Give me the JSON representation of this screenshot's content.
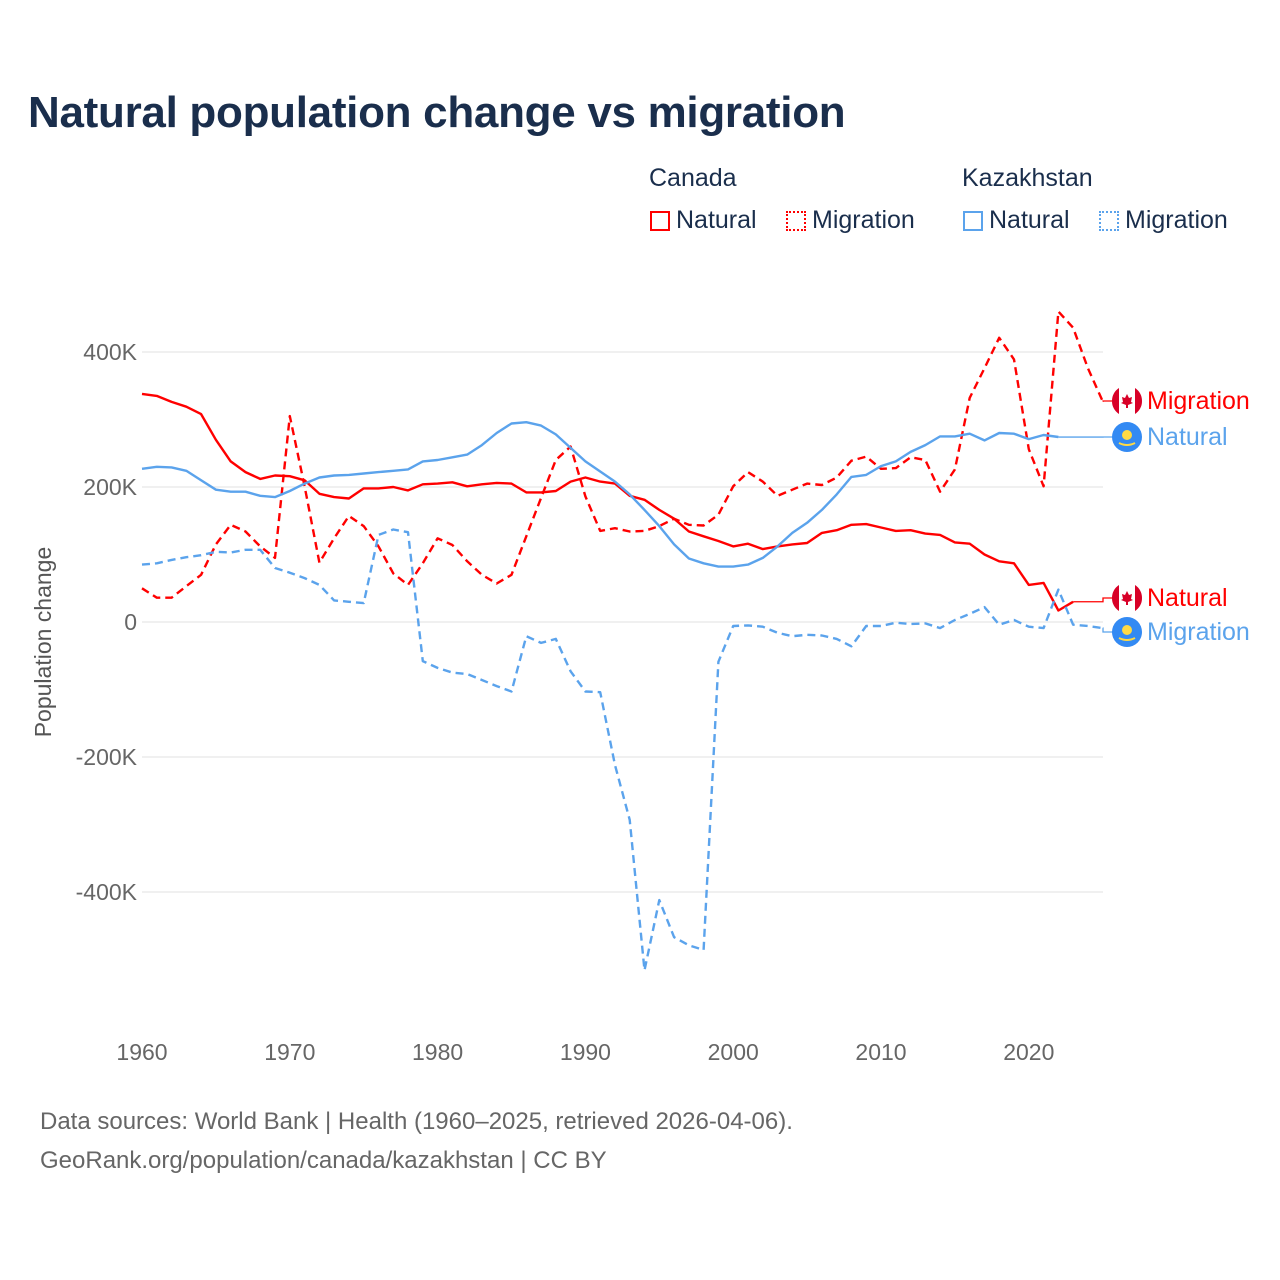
{
  "title": "Natural population change vs migration",
  "legend": {
    "groups": [
      {
        "name": "Canada",
        "items": [
          "Natural",
          "Migration"
        ]
      },
      {
        "name": "Kazakhstan",
        "items": [
          "Natural",
          "Migration"
        ]
      }
    ]
  },
  "footer": {
    "line1": "Data sources: World Bank | Health (1960–2025, retrieved 2026-04-06).",
    "line2": "GeoRank.org/population/canada/kazakhstan | CC BY"
  },
  "colors": {
    "canada": "#ff0000",
    "kazakhstan": "#5ba3ec",
    "canada_flag": "#d80027",
    "kazakhstan_flag": "#338af3"
  },
  "chart_data": {
    "type": "line",
    "title": "Natural population change vs migration",
    "xlabel": "",
    "ylabel": "Population change",
    "xlim": [
      1960,
      2025
    ],
    "ylim": [
      -560,
      480
    ],
    "x_ticks": [
      1960,
      1970,
      1980,
      1990,
      2000,
      2010,
      2020
    ],
    "x_tick_labels": [
      "1960",
      "1970",
      "1980",
      "1990",
      "2000",
      "2010",
      "2020"
    ],
    "y_ticks": [
      -400,
      -200,
      0,
      200,
      400
    ],
    "y_tick_labels": [
      "-400K",
      "-200K",
      "0",
      "200K",
      "400K"
    ],
    "units": "thousands",
    "grid": true,
    "legend_position": "top-right",
    "series": [
      {
        "name": "Canada Natural",
        "country": "Canada",
        "label": "Natural",
        "style": "solid",
        "color": "#ff0000",
        "start": 1960,
        "values": [
          338,
          335,
          326,
          319,
          308,
          270,
          238,
          222,
          212,
          217,
          216,
          210,
          190,
          185,
          183,
          198,
          198,
          200,
          195,
          204,
          205,
          207,
          201,
          204,
          206,
          205,
          192,
          192,
          194,
          208,
          214,
          208,
          205,
          187,
          181,
          166,
          153,
          134,
          127,
          120,
          112,
          116,
          108,
          112,
          115,
          117,
          132,
          136,
          144,
          145,
          140,
          135,
          136,
          131,
          129,
          118,
          116,
          100,
          90,
          87,
          55,
          58,
          17,
          30
        ]
      },
      {
        "name": "Canada Migration",
        "country": "Canada",
        "label": "Migration",
        "style": "dashed",
        "color": "#ff0000",
        "start": 1960,
        "values": [
          50,
          36,
          36,
          53,
          70,
          115,
          144,
          134,
          112,
          95,
          305,
          201,
          88,
          124,
          157,
          142,
          112,
          72,
          55,
          87,
          124,
          114,
          90,
          70,
          57,
          70,
          127,
          184,
          240,
          260,
          186,
          135,
          139,
          134,
          135,
          142,
          153,
          144,
          143,
          159,
          201,
          222,
          208,
          187,
          196,
          205,
          203,
          214,
          239,
          245,
          227,
          228,
          244,
          240,
          193,
          226,
          332,
          376,
          421,
          389,
          256,
          201,
          460,
          436,
          376,
          327
        ]
      },
      {
        "name": "Kazakhstan Natural",
        "country": "Kazakhstan",
        "label": "Natural",
        "style": "solid",
        "color": "#5ba3ec",
        "start": 1960,
        "values": [
          227,
          230,
          229,
          224,
          210,
          196,
          193,
          193,
          187,
          185,
          194,
          205,
          214,
          217,
          218,
          220,
          222,
          224,
          226,
          238,
          240,
          244,
          248,
          262,
          280,
          294,
          296,
          291,
          278,
          258,
          238,
          223,
          208,
          189,
          166,
          142,
          115,
          94,
          87,
          82,
          82,
          85,
          95,
          112,
          132,
          147,
          166,
          189,
          215,
          218,
          231,
          238,
          252,
          262,
          275,
          275,
          279,
          269,
          280,
          279,
          271,
          277,
          274
        ]
      },
      {
        "name": "Kazakhstan Migration",
        "country": "Kazakhstan",
        "label": "Migration",
        "style": "dashed",
        "color": "#5ba3ec",
        "start": 1960,
        "values": [
          85,
          87,
          92,
          96,
          99,
          104,
          103,
          107,
          107,
          80,
          73,
          65,
          55,
          32,
          30,
          28,
          129,
          137,
          133,
          -58,
          -68,
          -75,
          -77,
          -86,
          -95,
          -103,
          -21,
          -31,
          -25,
          -73,
          -103,
          -104,
          -212,
          -293,
          -516,
          -412,
          -467,
          -479,
          -486,
          -59,
          -6,
          -5,
          -7,
          -16,
          -21,
          -19,
          -20,
          -25,
          -36,
          -6,
          -6,
          -1,
          -3,
          -2,
          -9,
          3,
          12,
          22,
          -4,
          3,
          -7,
          -9,
          48,
          -4,
          -6,
          -9
        ]
      }
    ],
    "end_labels": [
      {
        "series": 1,
        "text": "Migration",
        "flag": "canada-flag"
      },
      {
        "series": 2,
        "text": "Natural",
        "flag": "kazakhstan-flag"
      },
      {
        "series": 0,
        "text": "Natural",
        "flag": "canada-flag"
      },
      {
        "series": 3,
        "text": "Migration",
        "flag": "kazakhstan-flag"
      }
    ]
  }
}
